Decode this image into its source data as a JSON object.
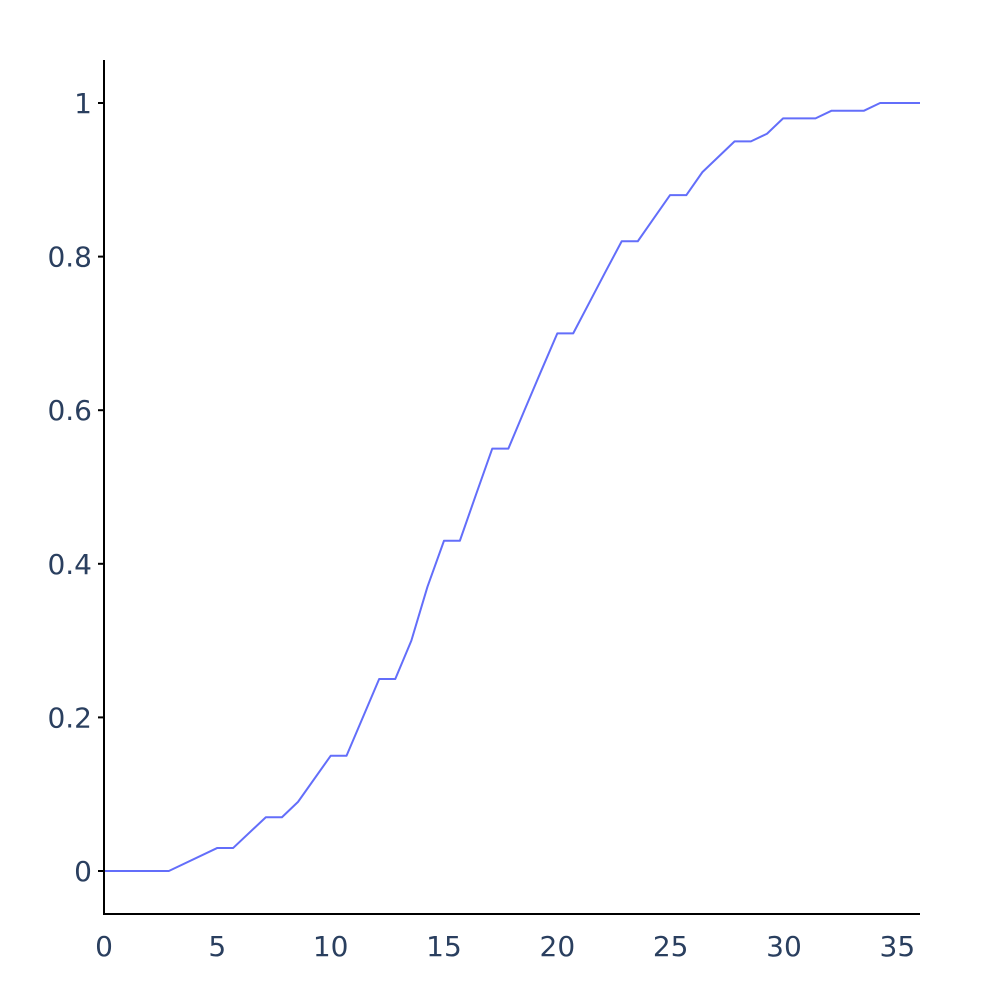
{
  "chart_data": {
    "type": "line",
    "title": "",
    "xlabel": "",
    "ylabel": "",
    "xlim": [
      0,
      36
    ],
    "ylim": [
      -0.056,
      1.056
    ],
    "grid": false,
    "x_ticks": [
      {
        "value": 0,
        "label": "0"
      },
      {
        "value": 5,
        "label": "5"
      },
      {
        "value": 10,
        "label": "10"
      },
      {
        "value": 15,
        "label": "15"
      },
      {
        "value": 20,
        "label": "20"
      },
      {
        "value": 25,
        "label": "25"
      },
      {
        "value": 30,
        "label": "30"
      },
      {
        "value": 35,
        "label": "35"
      }
    ],
    "y_ticks": [
      {
        "value": 0,
        "label": "0"
      },
      {
        "value": 0.2,
        "label": "0.2"
      },
      {
        "value": 0.4,
        "label": "0.4"
      },
      {
        "value": 0.6,
        "label": "0.6"
      },
      {
        "value": 0.8,
        "label": "0.8"
      },
      {
        "value": 1,
        "label": "1"
      }
    ],
    "series": [
      {
        "color": "#636efa",
        "x": [
          0,
          2.86,
          5.0,
          5.7,
          7.14,
          7.85,
          8.56,
          10.0,
          10.7,
          12.14,
          12.85,
          13.56,
          14.27,
          15.0,
          15.7,
          16.41,
          17.13,
          17.84,
          18.55,
          19.27,
          20.0,
          20.7,
          21.41,
          22.12,
          22.84,
          23.55,
          24.26,
          24.97,
          25.69,
          26.4,
          27.11,
          27.82,
          28.54,
          29.25,
          29.96,
          30.68,
          31.39,
          32.1,
          32.81,
          33.53,
          34.24,
          34.95,
          35.66,
          36.0
        ],
        "y": [
          0,
          0,
          0.03,
          0.03,
          0.07,
          0.07,
          0.09,
          0.15,
          0.15,
          0.25,
          0.25,
          0.3,
          0.37,
          0.43,
          0.43,
          0.49,
          0.55,
          0.55,
          0.6,
          0.65,
          0.7,
          0.7,
          0.74,
          0.78,
          0.82,
          0.82,
          0.85,
          0.88,
          0.88,
          0.91,
          0.93,
          0.95,
          0.95,
          0.96,
          0.98,
          0.98,
          0.98,
          0.99,
          0.99,
          0.99,
          1.0,
          1.0,
          1.0,
          1.0
        ]
      }
    ]
  }
}
